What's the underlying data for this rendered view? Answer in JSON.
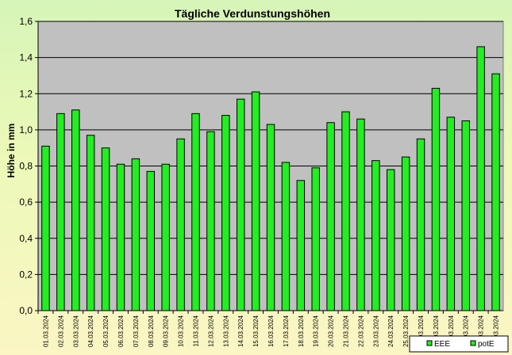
{
  "chart_data": {
    "type": "bar",
    "title": "Tägliche Verdunstungshöhen",
    "ylabel": "Höhe in mm",
    "xlabel": "",
    "ylim": [
      0,
      1.6
    ],
    "ytick_labels": [
      "0,0",
      "0,2",
      "0,4",
      "0,6",
      "0,8",
      "1,0",
      "1,2",
      "1,4",
      "1,6"
    ],
    "grid": true,
    "legend_position": "bottom-right",
    "colors": {
      "plot_bg": "#c0c0c0",
      "bar_fill": "#22ee22",
      "bar_stroke": "#000000",
      "grid": "#000000",
      "page_bg_top": "#d6f5b8",
      "page_bg_bottom": "#fbf6c4"
    },
    "categories": [
      "01.03.2024",
      "02.03.2024",
      "03.03.2024",
      "04.03.2024",
      "05.03.2024",
      "06.03.2024",
      "07.03.2024",
      "08.03.2024",
      "09.03.2024",
      "10.03.2024",
      "11.03.2024",
      "12.03.2024",
      "13.03.2024",
      "14.03.2024",
      "15.03.2024",
      "16.03.2024",
      "17.03.2024",
      "18.03.2024",
      "19.03.2024",
      "20.03.2024",
      "21.03.2024",
      "22.03.2024",
      "23.03.2024",
      "24.03.2024",
      "25.03.2024",
      "26.03.2024",
      "27.03.2024",
      "28.03.2024",
      "29.03.2024",
      "30.03.2024",
      "31.03.2024"
    ],
    "series": [
      {
        "name": "potE",
        "values": [
          0.91,
          1.09,
          1.11,
          0.97,
          0.9,
          0.81,
          0.84,
          0.77,
          0.81,
          0.95,
          1.09,
          0.99,
          1.08,
          1.17,
          1.21,
          1.03,
          0.82,
          0.72,
          0.79,
          1.04,
          1.1,
          1.06,
          0.83,
          0.78,
          0.85,
          0.95,
          1.23,
          1.07,
          1.05,
          1.46,
          1.31
        ]
      }
    ],
    "legend": [
      {
        "label": "EEE"
      },
      {
        "label": "potE"
      }
    ]
  }
}
